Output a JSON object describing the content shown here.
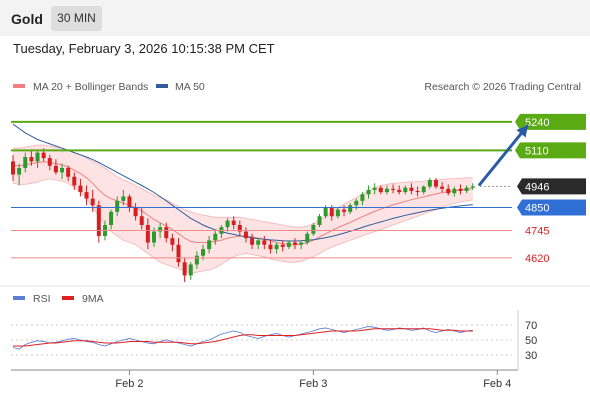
{
  "header": {
    "instrument": "Gold",
    "timeframe": "30 MIN"
  },
  "datetime": "Tuesday, February 3, 2026 10:15:38 PM CET",
  "legend": {
    "items": [
      {
        "label": "MA 20 + Bollinger Bands",
        "color": "#f08080"
      },
      {
        "label": "MA 50",
        "color": "#2f5d9e"
      }
    ],
    "credit": "Research © 2026 Trading Central"
  },
  "rsi_legend": {
    "items": [
      {
        "label": "RSI",
        "color": "#5b7fd6"
      },
      {
        "label": "9MA",
        "color": "#e02020"
      }
    ]
  },
  "colors": {
    "up": "#2e9a2e",
    "down": "#d42020",
    "band": "#fde0e0",
    "resistance": "#5aaa14",
    "support": "#2f6fd6",
    "target": "#e02020",
    "last": "#2a2a2a"
  },
  "chart_data": [
    {
      "type": "candlestick",
      "y_range": [
        4510,
        5340
      ],
      "x_ticks": [
        {
          "label": "Feb 2",
          "index": 19
        },
        {
          "label": "Feb 3",
          "index": 49
        },
        {
          "label": "Feb 4",
          "index": 79
        }
      ],
      "levels": [
        {
          "value": 5240,
          "label": "5240",
          "kind": "resistance"
        },
        {
          "value": 5110,
          "label": "5110",
          "kind": "resistance"
        },
        {
          "value": 4946,
          "label": "4946",
          "kind": "last"
        },
        {
          "value": 4850,
          "label": "4850",
          "kind": "support"
        },
        {
          "value": 4745,
          "label": "4745",
          "kind": "target"
        },
        {
          "value": 4620,
          "label": "4620",
          "kind": "target"
        }
      ],
      "projection": {
        "from": [
          76,
          4950
        ],
        "to": [
          84,
          5225
        ]
      },
      "candles": [
        [
          5060,
          5090,
          4970,
          5000
        ],
        [
          5000,
          5050,
          4950,
          5030
        ],
        [
          5030,
          5100,
          5010,
          5080
        ],
        [
          5080,
          5110,
          5040,
          5060
        ],
        [
          5060,
          5110,
          5030,
          5100
        ],
        [
          5100,
          5120,
          5060,
          5075
        ],
        [
          5075,
          5090,
          5020,
          5040
        ],
        [
          5040,
          5070,
          5000,
          5010
        ],
        [
          5010,
          5050,
          4980,
          5030
        ],
        [
          5030,
          5040,
          4970,
          4990
        ],
        [
          4990,
          5010,
          4930,
          4950
        ],
        [
          4950,
          4980,
          4900,
          4920
        ],
        [
          4920,
          4950,
          4860,
          4890
        ],
        [
          4890,
          4930,
          4830,
          4860
        ],
        [
          4860,
          4880,
          4690,
          4720
        ],
        [
          4720,
          4790,
          4700,
          4770
        ],
        [
          4770,
          4840,
          4750,
          4830
        ],
        [
          4830,
          4900,
          4810,
          4880
        ],
        [
          4880,
          4930,
          4860,
          4900
        ],
        [
          4900,
          4910,
          4830,
          4850
        ],
        [
          4850,
          4870,
          4790,
          4810
        ],
        [
          4810,
          4850,
          4750,
          4770
        ],
        [
          4770,
          4800,
          4660,
          4690
        ],
        [
          4690,
          4760,
          4670,
          4740
        ],
        [
          4740,
          4780,
          4710,
          4760
        ],
        [
          4760,
          4780,
          4690,
          4710
        ],
        [
          4710,
          4730,
          4650,
          4680
        ],
        [
          4680,
          4710,
          4580,
          4600
        ],
        [
          4600,
          4620,
          4510,
          4540
        ],
        [
          4540,
          4600,
          4520,
          4590
        ],
        [
          4590,
          4650,
          4570,
          4630
        ],
        [
          4630,
          4680,
          4610,
          4660
        ],
        [
          4660,
          4720,
          4640,
          4700
        ],
        [
          4700,
          4750,
          4680,
          4730
        ],
        [
          4730,
          4770,
          4710,
          4760
        ],
        [
          4760,
          4800,
          4740,
          4790
        ],
        [
          4790,
          4810,
          4750,
          4770
        ],
        [
          4770,
          4790,
          4720,
          4740
        ],
        [
          4740,
          4760,
          4690,
          4710
        ],
        [
          4710,
          4730,
          4660,
          4680
        ],
        [
          4680,
          4710,
          4660,
          4700
        ],
        [
          4700,
          4720,
          4660,
          4680
        ],
        [
          4680,
          4700,
          4640,
          4660
        ],
        [
          4660,
          4690,
          4640,
          4680
        ],
        [
          4680,
          4700,
          4650,
          4670
        ],
        [
          4670,
          4700,
          4660,
          4690
        ],
        [
          4690,
          4710,
          4660,
          4680
        ],
        [
          4680,
          4700,
          4660,
          4690
        ],
        [
          4690,
          4740,
          4680,
          4730
        ],
        [
          4730,
          4780,
          4720,
          4770
        ],
        [
          4770,
          4820,
          4760,
          4810
        ],
        [
          4810,
          4860,
          4800,
          4850
        ],
        [
          4850,
          4860,
          4790,
          4810
        ],
        [
          4810,
          4850,
          4800,
          4840
        ],
        [
          4840,
          4860,
          4810,
          4830
        ],
        [
          4830,
          4870,
          4820,
          4860
        ],
        [
          4860,
          4890,
          4840,
          4880
        ],
        [
          4880,
          4920,
          4860,
          4910
        ],
        [
          4910,
          4950,
          4890,
          4930
        ],
        [
          4930,
          4960,
          4910,
          4940
        ],
        [
          4940,
          4950,
          4910,
          4920
        ],
        [
          4920,
          4950,
          4910,
          4935
        ],
        [
          4935,
          4955,
          4915,
          4930
        ],
        [
          4930,
          4950,
          4910,
          4920
        ],
        [
          4920,
          4950,
          4910,
          4940
        ],
        [
          4940,
          4960,
          4910,
          4925
        ],
        [
          4925,
          4945,
          4900,
          4920
        ],
        [
          4920,
          4950,
          4910,
          4945
        ],
        [
          4945,
          4985,
          4935,
          4975
        ],
        [
          4975,
          4985,
          4935,
          4945
        ],
        [
          4945,
          4965,
          4920,
          4935
        ],
        [
          4935,
          4955,
          4905,
          4915
        ],
        [
          4915,
          4945,
          4900,
          4935
        ],
        [
          4935,
          4955,
          4910,
          4925
        ],
        [
          4925,
          4950,
          4915,
          4940
        ],
        [
          4940,
          4960,
          4930,
          4946
        ]
      ],
      "ma20": [
        5040,
        5040,
        5045,
        5050,
        5055,
        5058,
        5055,
        5050,
        5045,
        5035,
        5020,
        5005,
        4985,
        4960,
        4930,
        4905,
        4890,
        4880,
        4870,
        4860,
        4850,
        4835,
        4815,
        4795,
        4780,
        4765,
        4750,
        4730,
        4710,
        4695,
        4690,
        4690,
        4690,
        4695,
        4700,
        4710,
        4715,
        4720,
        4720,
        4715,
        4710,
        4705,
        4698,
        4690,
        4685,
        4680,
        4680,
        4682,
        4690,
        4700,
        4715,
        4730,
        4745,
        4758,
        4770,
        4782,
        4795,
        4808,
        4820,
        4832,
        4843,
        4853,
        4862,
        4870,
        4878,
        4885,
        4892,
        4898,
        4905,
        4912,
        4918,
        4922,
        4926,
        4930,
        4933,
        4936
      ],
      "bb_upper": [
        5120,
        5120,
        5125,
        5130,
        5135,
        5135,
        5130,
        5125,
        5120,
        5110,
        5100,
        5090,
        5075,
        5060,
        5045,
        5030,
        5010,
        4990,
        4975,
        4965,
        4950,
        4935,
        4920,
        4905,
        4895,
        4885,
        4870,
        4855,
        4840,
        4830,
        4820,
        4815,
        4810,
        4805,
        4805,
        4805,
        4805,
        4805,
        4800,
        4795,
        4790,
        4785,
        4780,
        4775,
        4770,
        4765,
        4760,
        4760,
        4765,
        4775,
        4790,
        4810,
        4830,
        4850,
        4865,
        4880,
        4895,
        4910,
        4925,
        4940,
        4950,
        4955,
        4960,
        4962,
        4965,
        4967,
        4968,
        4970,
        4972,
        4975,
        4978,
        4980,
        4982,
        4984,
        4985,
        4986
      ],
      "bb_lower": [
        4960,
        4955,
        4955,
        4960,
        4965,
        4975,
        4980,
        4975,
        4970,
        4960,
        4940,
        4920,
        4890,
        4850,
        4810,
        4770,
        4740,
        4720,
        4700,
        4690,
        4680,
        4660,
        4640,
        4620,
        4600,
        4590,
        4580,
        4570,
        4560,
        4550,
        4555,
        4560,
        4565,
        4575,
        4590,
        4610,
        4625,
        4635,
        4640,
        4635,
        4630,
        4625,
        4615,
        4610,
        4605,
        4600,
        4600,
        4605,
        4615,
        4625,
        4640,
        4655,
        4670,
        4680,
        4690,
        4700,
        4710,
        4720,
        4730,
        4740,
        4750,
        4760,
        4770,
        4780,
        4790,
        4800,
        4810,
        4820,
        4830,
        4840,
        4850,
        4860,
        4868,
        4875,
        4880,
        4885
      ],
      "ma50": [
        5230,
        5210,
        5190,
        5175,
        5160,
        5150,
        5140,
        5130,
        5120,
        5110,
        5100,
        5090,
        5080,
        5068,
        5055,
        5040,
        5025,
        5010,
        4995,
        4980,
        4965,
        4950,
        4935,
        4918,
        4900,
        4880,
        4860,
        4840,
        4820,
        4800,
        4785,
        4770,
        4758,
        4748,
        4740,
        4733,
        4727,
        4721,
        4716,
        4712,
        4708,
        4705,
        4702,
        4700,
        4698,
        4697,
        4697,
        4698,
        4700,
        4703,
        4707,
        4712,
        4718,
        4725,
        4733,
        4741,
        4750,
        4759,
        4768,
        4776,
        4784,
        4792,
        4800,
        4807,
        4814,
        4820,
        4826,
        4832,
        4837,
        4842,
        4846,
        4850,
        4854,
        4857,
        4860,
        4862
      ]
    },
    {
      "type": "line",
      "name": "rsi",
      "y_range": [
        10,
        90
      ],
      "y_ticks": [
        70,
        50,
        30
      ],
      "guides": [
        70,
        50,
        30
      ],
      "series": [
        {
          "name": "RSI",
          "values": [
            40,
            38,
            44,
            47,
            49,
            48,
            46,
            47,
            49,
            51,
            52,
            50,
            48,
            47,
            44,
            42,
            45,
            48,
            50,
            52,
            50,
            48,
            46,
            45,
            48,
            50,
            48,
            46,
            44,
            42,
            45,
            48,
            50,
            54,
            58,
            60,
            62,
            60,
            56,
            54,
            52,
            55,
            57,
            59,
            56,
            54,
            56,
            58,
            60,
            62,
            65,
            66,
            64,
            62,
            60,
            62,
            64,
            66,
            68,
            67,
            65,
            63,
            64,
            66,
            65,
            63,
            64,
            66,
            62,
            60,
            62,
            64,
            62,
            60,
            62,
            63
          ]
        },
        {
          "name": "9MA",
          "values": [
            42,
            42,
            42,
            43,
            44,
            45,
            46,
            46,
            47,
            48,
            49,
            49,
            49,
            48,
            47,
            46,
            46,
            46,
            47,
            48,
            48,
            48,
            48,
            47,
            47,
            47,
            47,
            47,
            46,
            45,
            45,
            46,
            47,
            48,
            50,
            52,
            54,
            56,
            57,
            57,
            56,
            56,
            56,
            56,
            56,
            56,
            56,
            57,
            58,
            59,
            60,
            61,
            62,
            62,
            62,
            62,
            62,
            63,
            64,
            65,
            65,
            65,
            65,
            65,
            65,
            65,
            65,
            65,
            65,
            64,
            63,
            63,
            63,
            62,
            62,
            62
          ]
        }
      ]
    }
  ]
}
